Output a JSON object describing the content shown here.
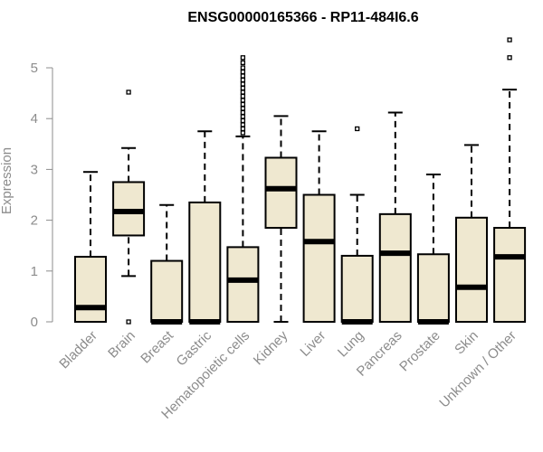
{
  "chart_data": {
    "type": "box",
    "title": "ENSG00000165366 - RP11-484I6.6",
    "xlabel": "",
    "ylabel": "Expression",
    "ylim": [
      0,
      5.5
    ],
    "yticks": [
      0,
      1,
      2,
      3,
      4,
      5
    ],
    "box_fill": "#efe8d0",
    "box_stroke": "#000000",
    "axis_color": "#8c8c8c",
    "categories": [
      "Bladder",
      "Brain",
      "Breast",
      "Gastric",
      "Hematopoietic cells",
      "Kidney",
      "Liver",
      "Lung",
      "Pancreas",
      "Prostate",
      "Skin",
      "Unknown / Other"
    ],
    "boxes": [
      {
        "category": "Bladder",
        "min": 0,
        "q1": 0,
        "median": 0.28,
        "q3": 1.28,
        "max": 2.95,
        "outliers": []
      },
      {
        "category": "Brain",
        "min": 0.9,
        "q1": 1.7,
        "median": 2.17,
        "q3": 2.75,
        "max": 3.42,
        "outliers": [
          4.52,
          0
        ]
      },
      {
        "category": "Breast",
        "min": 0,
        "q1": 0,
        "median": 0,
        "q3": 1.2,
        "max": 2.3,
        "outliers": []
      },
      {
        "category": "Gastric",
        "min": 0,
        "q1": 0,
        "median": 0,
        "q3": 2.35,
        "max": 3.75,
        "outliers": []
      },
      {
        "category": "Hematopoietic cells",
        "min": 0,
        "q1": 0,
        "median": 0.82,
        "q3": 1.47,
        "max": 3.65,
        "outliers": [
          3.72,
          3.8,
          3.88,
          3.96,
          4.04,
          4.12,
          4.2,
          4.28,
          4.36,
          4.44,
          4.52,
          4.6,
          4.68,
          4.76,
          4.84,
          4.92,
          5.0,
          5.1,
          5.2
        ]
      },
      {
        "category": "Kidney",
        "min": 0,
        "q1": 1.85,
        "median": 2.62,
        "q3": 3.23,
        "max": 4.05,
        "outliers": []
      },
      {
        "category": "Liver",
        "min": 0,
        "q1": 0,
        "median": 1.58,
        "q3": 2.5,
        "max": 3.75,
        "outliers": []
      },
      {
        "category": "Lung",
        "min": 0,
        "q1": 0,
        "median": 0,
        "q3": 1.3,
        "max": 2.5,
        "outliers": [
          3.8
        ]
      },
      {
        "category": "Pancreas",
        "min": 0,
        "q1": 0,
        "median": 1.35,
        "q3": 2.12,
        "max": 4.12,
        "outliers": []
      },
      {
        "category": "Prostate",
        "min": 0,
        "q1": 0,
        "median": 0,
        "q3": 1.33,
        "max": 2.9,
        "outliers": []
      },
      {
        "category": "Skin",
        "min": 0,
        "q1": 0,
        "median": 0.68,
        "q3": 2.05,
        "max": 3.48,
        "outliers": []
      },
      {
        "category": "Unknown / Other",
        "min": 0,
        "q1": 0,
        "median": 1.28,
        "q3": 1.85,
        "max": 4.57,
        "outliers": [
          5.2,
          5.55
        ]
      }
    ]
  }
}
